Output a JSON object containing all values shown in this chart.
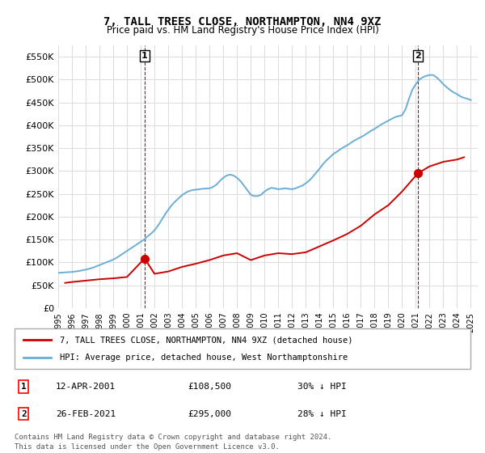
{
  "title": "7, TALL TREES CLOSE, NORTHAMPTON, NN4 9XZ",
  "subtitle": "Price paid vs. HM Land Registry's House Price Index (HPI)",
  "ylabel_ticks": [
    0,
    50000,
    100000,
    150000,
    200000,
    250000,
    300000,
    350000,
    400000,
    450000,
    500000,
    550000
  ],
  "ylim": [
    0,
    575000
  ],
  "xlim_start": 1995.0,
  "xlim_end": 2025.5,
  "legend_line1": "7, TALL TREES CLOSE, NORTHAMPTON, NN4 9XZ (detached house)",
  "legend_line2": "HPI: Average price, detached house, West Northamptonshire",
  "sale1_label": "1",
  "sale1_date": "12-APR-2001",
  "sale1_price": "£108,500",
  "sale1_hpi": "30% ↓ HPI",
  "sale1_year": 2001.28,
  "sale1_value": 108500,
  "sale2_label": "2",
  "sale2_date": "26-FEB-2021",
  "sale2_price": "£295,000",
  "sale2_hpi": "28% ↓ HPI",
  "sale2_year": 2021.15,
  "sale2_value": 295000,
  "footer1": "Contains HM Land Registry data © Crown copyright and database right 2024.",
  "footer2": "This data is licensed under the Open Government Licence v3.0.",
  "hpi_color": "#6baed6",
  "property_color": "#cc0000",
  "dashed_color": "#cc0000",
  "background_color": "#ffffff",
  "grid_color": "#dddddd",
  "hpi_data_years": [
    1995.0,
    1995.25,
    1995.5,
    1995.75,
    1996.0,
    1996.25,
    1996.5,
    1996.75,
    1997.0,
    1997.25,
    1997.5,
    1997.75,
    1998.0,
    1998.25,
    1998.5,
    1998.75,
    1999.0,
    1999.25,
    1999.5,
    1999.75,
    2000.0,
    2000.25,
    2000.5,
    2000.75,
    2001.0,
    2001.25,
    2001.5,
    2001.75,
    2002.0,
    2002.25,
    2002.5,
    2002.75,
    2003.0,
    2003.25,
    2003.5,
    2003.75,
    2004.0,
    2004.25,
    2004.5,
    2004.75,
    2005.0,
    2005.25,
    2005.5,
    2005.75,
    2006.0,
    2006.25,
    2006.5,
    2006.75,
    2007.0,
    2007.25,
    2007.5,
    2007.75,
    2008.0,
    2008.25,
    2008.5,
    2008.75,
    2009.0,
    2009.25,
    2009.5,
    2009.75,
    2010.0,
    2010.25,
    2010.5,
    2010.75,
    2011.0,
    2011.25,
    2011.5,
    2011.75,
    2012.0,
    2012.25,
    2012.5,
    2012.75,
    2013.0,
    2013.25,
    2013.5,
    2013.75,
    2014.0,
    2014.25,
    2014.5,
    2014.75,
    2015.0,
    2015.25,
    2015.5,
    2015.75,
    2016.0,
    2016.25,
    2016.5,
    2016.75,
    2017.0,
    2017.25,
    2017.5,
    2017.75,
    2018.0,
    2018.25,
    2018.5,
    2018.75,
    2019.0,
    2019.25,
    2019.5,
    2019.75,
    2020.0,
    2020.25,
    2020.5,
    2020.75,
    2021.0,
    2021.25,
    2021.5,
    2021.75,
    2022.0,
    2022.25,
    2022.5,
    2022.75,
    2023.0,
    2023.25,
    2023.5,
    2023.75,
    2024.0,
    2024.25,
    2024.5,
    2024.75,
    2025.0
  ],
  "hpi_data_values": [
    77000,
    77500,
    78000,
    78500,
    79000,
    80000,
    81000,
    82500,
    84000,
    86000,
    88000,
    91000,
    94000,
    97000,
    100000,
    103000,
    106000,
    110000,
    115000,
    120000,
    125000,
    130000,
    135000,
    140000,
    145000,
    150000,
    157000,
    163000,
    170000,
    180000,
    192000,
    204000,
    215000,
    225000,
    233000,
    240000,
    247000,
    252000,
    256000,
    258000,
    259000,
    260000,
    261000,
    261500,
    262000,
    265000,
    270000,
    278000,
    285000,
    290000,
    292000,
    290000,
    285000,
    278000,
    268000,
    258000,
    248000,
    245000,
    245000,
    248000,
    255000,
    260000,
    263000,
    262000,
    260000,
    261000,
    262000,
    261000,
    260000,
    262000,
    265000,
    268000,
    273000,
    279000,
    287000,
    296000,
    305000,
    315000,
    323000,
    330000,
    337000,
    342000,
    347000,
    352000,
    356000,
    361000,
    366000,
    370000,
    374000,
    378000,
    383000,
    388000,
    392000,
    397000,
    402000,
    406000,
    410000,
    414000,
    418000,
    420000,
    422000,
    435000,
    458000,
    478000,
    490000,
    500000,
    505000,
    508000,
    510000,
    510000,
    505000,
    498000,
    490000,
    483000,
    477000,
    472000,
    468000,
    463000,
    460000,
    458000,
    455000
  ],
  "property_data_years": [
    1995.5,
    1996.0,
    1997.0,
    1998.0,
    1999.0,
    2000.0,
    2001.28,
    2002.0,
    2003.0,
    2004.0,
    2005.0,
    2006.0,
    2007.0,
    2008.0,
    2009.0,
    2010.0,
    2011.0,
    2012.0,
    2013.0,
    2014.0,
    2015.0,
    2016.0,
    2017.0,
    2018.0,
    2019.0,
    2020.0,
    2021.15,
    2022.0,
    2023.0,
    2024.0,
    2024.5
  ],
  "property_data_values": [
    55000,
    57000,
    60000,
    63000,
    65000,
    68000,
    108500,
    75000,
    80000,
    90000,
    97000,
    105000,
    115000,
    120000,
    105000,
    115000,
    120000,
    118000,
    122000,
    135000,
    148000,
    162000,
    180000,
    205000,
    225000,
    255000,
    295000,
    310000,
    320000,
    325000,
    330000
  ]
}
